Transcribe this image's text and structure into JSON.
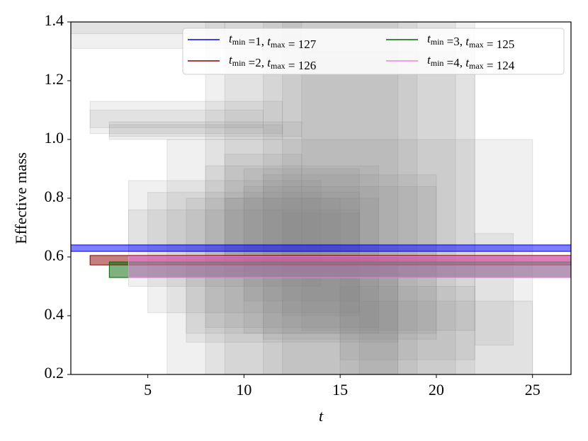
{
  "chart_data": {
    "type": "band",
    "xlabel": "t",
    "ylabel": "Effective mass",
    "xlim": [
      1,
      27
    ],
    "ylim": [
      0.2,
      1.4
    ],
    "xticks": [
      5,
      10,
      15,
      20,
      25
    ],
    "yticks": [
      0.2,
      0.4,
      0.6,
      0.8,
      {
        "value": 1,
        "label": "1.0"
      },
      1.2,
      1.4
    ],
    "legend": "upper right",
    "band_color": "#808080",
    "bands": [
      {
        "x": [
          1,
          9
        ],
        "y": [
          1.36,
          1.4
        ]
      },
      {
        "x": [
          1,
          13
        ],
        "y": [
          1.31,
          1.4
        ]
      },
      {
        "x": [
          2,
          12
        ],
        "y": [
          1.02,
          1.13
        ]
      },
      {
        "x": [
          2,
          11
        ],
        "y": [
          1.04,
          1.1
        ]
      },
      {
        "x": [
          3,
          13
        ],
        "y": [
          1.01,
          1.06
        ]
      },
      {
        "x": [
          3,
          12
        ],
        "y": [
          1.0,
          1.05
        ]
      },
      {
        "x": [
          8,
          22
        ],
        "y": [
          0.2,
          1.4
        ]
      },
      {
        "x": [
          9,
          19
        ],
        "y": [
          0.2,
          1.4
        ]
      },
      {
        "x": [
          11,
          18
        ],
        "y": [
          0.2,
          1.4
        ]
      },
      {
        "x": [
          12,
          21
        ],
        "y": [
          0.2,
          1.4
        ]
      },
      {
        "x": [
          13,
          22
        ],
        "y": [
          0.35,
          1.3
        ]
      },
      {
        "x": [
          6,
          25
        ],
        "y": [
          0.2,
          1.0
        ]
      },
      {
        "x": [
          16,
          25
        ],
        "y": [
          0.2,
          0.45
        ]
      },
      {
        "x": [
          4,
          14
        ],
        "y": [
          0.5,
          0.86
        ]
      },
      {
        "x": [
          5,
          16
        ],
        "y": [
          0.41,
          0.82
        ]
      },
      {
        "x": [
          7,
          17
        ],
        "y": [
          0.34,
          0.8
        ]
      },
      {
        "x": [
          8,
          17
        ],
        "y": [
          0.36,
          0.91
        ]
      },
      {
        "x": [
          10,
          20
        ],
        "y": [
          0.34,
          0.84
        ]
      },
      {
        "x": [
          11,
          20
        ],
        "y": [
          0.32,
          0.88
        ]
      },
      {
        "x": [
          15,
          18
        ],
        "y": [
          0.2,
          0.6
        ]
      },
      {
        "x": [
          22,
          24
        ],
        "y": [
          0.3,
          0.68
        ]
      },
      {
        "x": [
          4,
          16
        ],
        "y": [
          0.62,
          0.76
        ]
      },
      {
        "x": [
          9,
          15
        ],
        "y": [
          0.55,
          0.8
        ]
      },
      {
        "x": [
          12,
          16
        ],
        "y": [
          0.4,
          0.75
        ]
      },
      {
        "x": [
          7,
          18
        ],
        "y": [
          0.31,
          0.58
        ]
      },
      {
        "x": [
          15,
          22
        ],
        "y": [
          0.25,
          0.5
        ]
      },
      {
        "x": [
          9,
          13
        ],
        "y": [
          0.6,
          0.95
        ]
      },
      {
        "x": [
          10,
          16
        ],
        "y": [
          0.45,
          0.9
        ]
      }
    ],
    "series": [
      {
        "name": "t_min =1, t_max = 127",
        "color": "#0000ff",
        "x": [
          1,
          27
        ],
        "values": [
          0.619,
          0.641
        ]
      },
      {
        "name": "t_min =2, t_max = 126",
        "color": "#8b0000",
        "x": [
          2,
          27
        ],
        "values": [
          0.573,
          0.605
        ]
      },
      {
        "name": "t_min =3, t_max = 125",
        "color": "#006400",
        "x": [
          3,
          27
        ],
        "values": [
          0.53,
          0.583
        ]
      },
      {
        "name": "t_min =4, t_max = 124",
        "color": "#ee82ee",
        "x": [
          4,
          27
        ],
        "values": [
          0.53,
          0.602
        ]
      }
    ]
  }
}
